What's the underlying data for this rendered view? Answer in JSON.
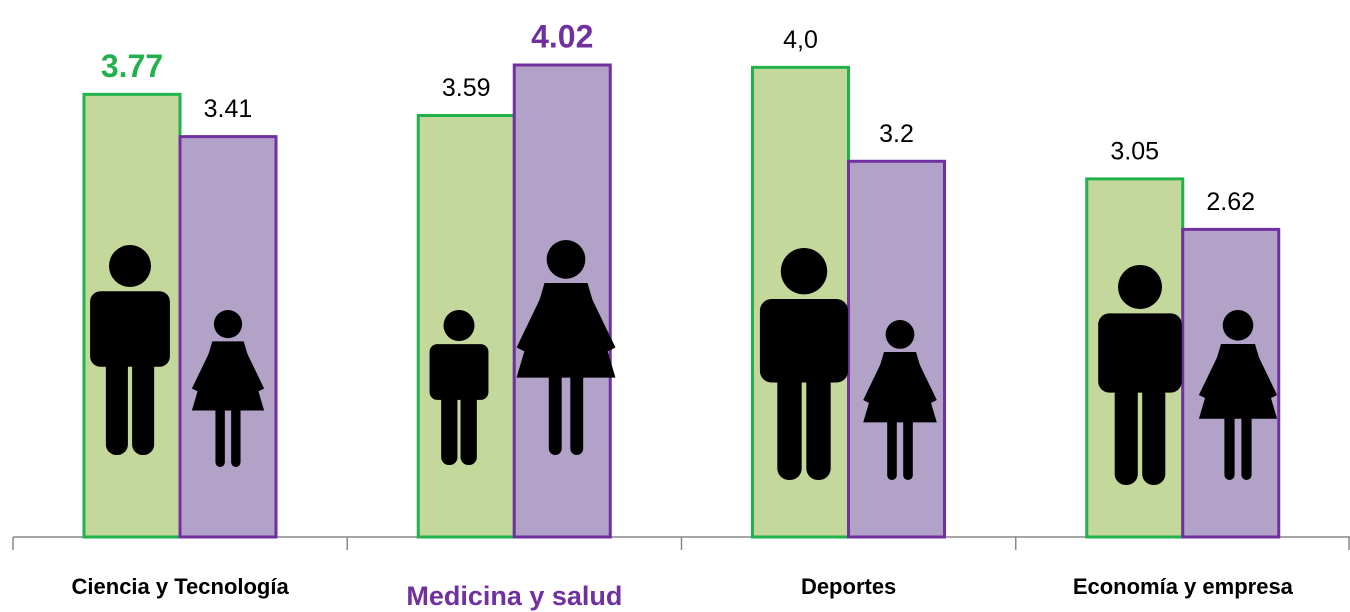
{
  "chart_data": {
    "type": "bar",
    "categories": [
      "Ciencia y Tecnología",
      "Medicina y salud",
      "Deportes",
      "Economía y empresa"
    ],
    "series": [
      {
        "color": "#c5d89b",
        "edge": "#22b14c",
        "values": [
          3.77,
          3.59,
          4.0,
          3.05
        ],
        "value_labels": [
          "3.77",
          "3.59",
          "4,0",
          "3.05"
        ]
      },
      {
        "color": "#b3a2c7",
        "edge": "#7030a0",
        "values": [
          3.41,
          4.02,
          3.2,
          2.62
        ],
        "value_labels": [
          "3.41",
          "4.02",
          "3.2",
          "2.62"
        ]
      }
    ]
  }
}
